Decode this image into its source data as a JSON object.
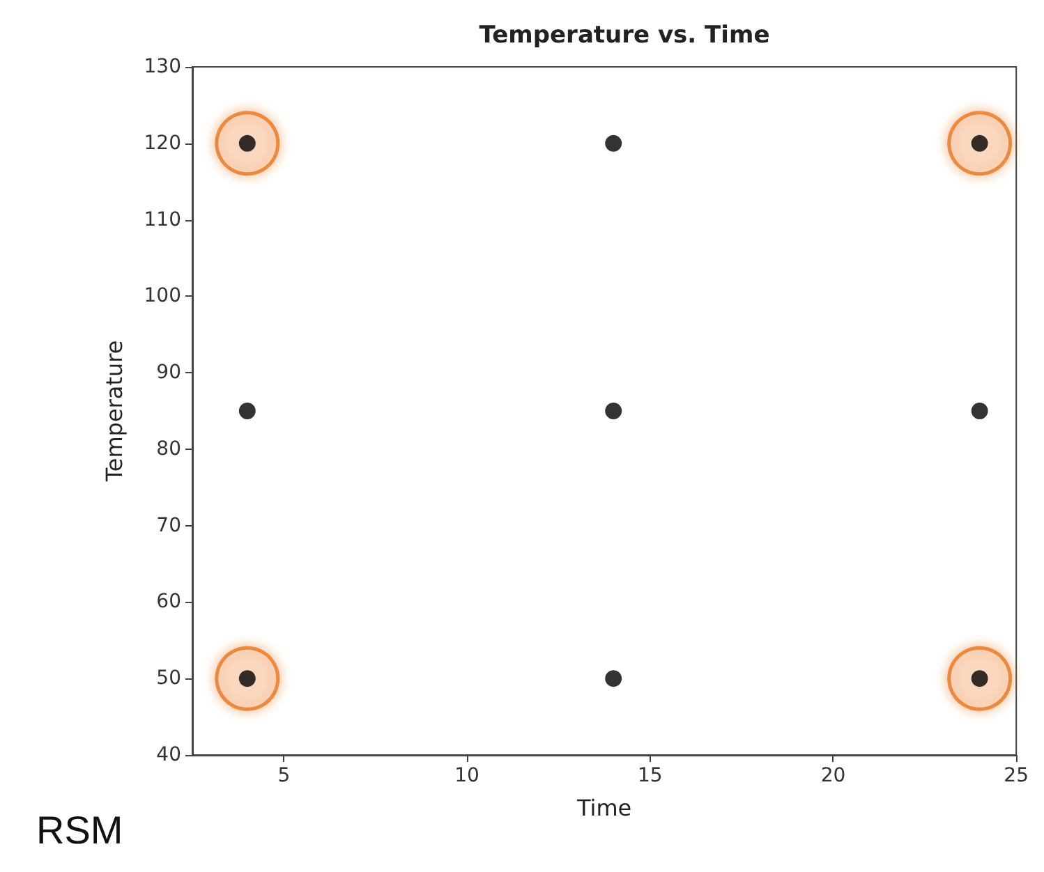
{
  "chart_data": {
    "type": "scatter",
    "title": "Temperature vs. Time",
    "xlabel": "Time",
    "ylabel": "Temperature",
    "xlim": [
      2.5,
      25
    ],
    "xticks": [
      5,
      10,
      15,
      20,
      25
    ],
    "ylim": [
      40,
      130
    ],
    "yticks": [
      40,
      50,
      60,
      70,
      80,
      90,
      100,
      110,
      120,
      130
    ],
    "grid": false,
    "marker": "circle",
    "series": [
      {
        "color": "#e87722",
        "x": [
          4,
          24,
          4,
          24
        ],
        "values": [
          120,
          120,
          50,
          50
        ]
      },
      {
        "color": "#000000",
        "x": [
          4,
          14,
          24,
          4,
          14,
          24,
          4,
          14,
          24
        ],
        "values": [
          120,
          120,
          120,
          85,
          85,
          85,
          50,
          50,
          50
        ]
      }
    ],
    "annotations": [
      "RSM"
    ]
  }
}
